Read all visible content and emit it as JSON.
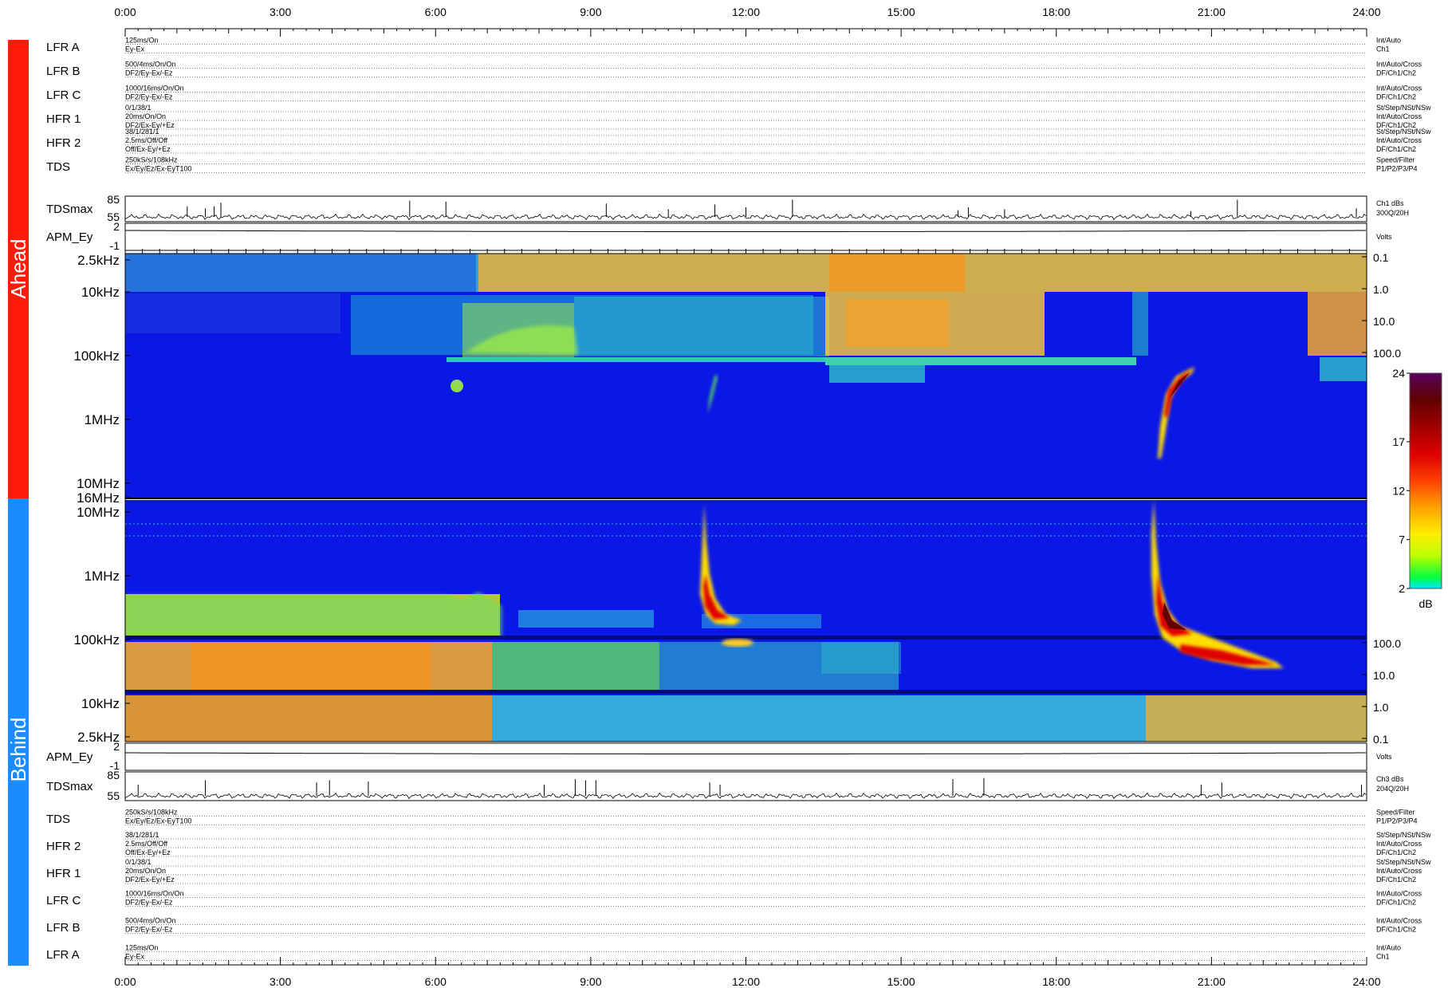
{
  "chart_data": {
    "type": "heatmap",
    "time_ticks": [
      "0:00",
      "3:00",
      "6:00",
      "9:00",
      "12:00",
      "15:00",
      "18:00",
      "21:00",
      "24:00"
    ],
    "ahead": {
      "label": "Ahead",
      "color": "#ff1a0a",
      "rows": [
        {
          "name": "LFR A",
          "left": [
            "125ms/On",
            "Ey-Ex"
          ],
          "right": [
            "Int/Auto",
            "Ch1"
          ]
        },
        {
          "name": "LFR B",
          "left": [
            "500/4ms/On/On",
            "DF2/Ey-Ex/-Ez"
          ],
          "right": [
            "Int/Auto/Cross",
            "DF/Ch1/Ch2"
          ]
        },
        {
          "name": "LFR C",
          "left": [
            "1000/16ms/On/On",
            "DF2/Ey-Ex/-Ez"
          ],
          "right": [
            "Int/Auto/Cross",
            "DF/Ch1/Ch2"
          ]
        },
        {
          "name": "HFR 1",
          "left": [
            "0/1/38/1",
            "20ms/On/On",
            "DF2/Ex-Ey/+Ez"
          ],
          "right": [
            "St/Step/NSt/NSw",
            "Int/Auto/Cross",
            "DF/Ch1/Ch2"
          ]
        },
        {
          "name": "HFR 2",
          "left": [
            "38/1/281/1",
            "2.5ms/Off/Off",
            "Off/Ex-Ey/+Ez"
          ],
          "right": [
            "St/Step/NSt/NSw",
            "Int/Auto/Cross",
            "DF/Ch1/Ch2"
          ]
        },
        {
          "name": "TDS",
          "left": [
            "250kS/s/108kHz",
            "Ex/Ey/Ez/Ex-EyT100"
          ],
          "right": [
            "Speed/Filter",
            "P1/P2/P3/P4"
          ]
        }
      ],
      "tdsmax": {
        "name": "TDSmax",
        "ticks": [
          "85",
          "55"
        ],
        "right": [
          "Ch1 dBs",
          "300Q/20H"
        ],
        "spikes": [
          [
            1.2,
            0.55
          ],
          [
            1.55,
            0.45
          ],
          [
            1.72,
            0.55
          ],
          [
            1.85,
            0.75
          ],
          [
            5.5,
            0.85
          ],
          [
            6.2,
            0.8
          ],
          [
            9.3,
            0.7
          ],
          [
            10.5,
            0.4
          ],
          [
            11.4,
            0.65
          ],
          [
            12.0,
            0.5
          ],
          [
            12.9,
            0.9
          ],
          [
            16.1,
            0.35
          ],
          [
            16.3,
            0.5
          ],
          [
            17.0,
            0.4
          ],
          [
            20.6,
            0.3
          ],
          [
            21.5,
            0.9
          ],
          [
            23.8,
            0.45
          ]
        ]
      },
      "apm": {
        "name": "APM_Ey",
        "ticks": [
          "2",
          "-1"
        ],
        "right": [
          "Volts"
        ]
      },
      "freq_labels": [
        "2.5kHz",
        "10kHz",
        "100kHz",
        "1MHz",
        "10MHz"
      ],
      "right_labels": [
        "0.1",
        "1.0",
        "10.0",
        "100.0"
      ]
    },
    "behind": {
      "label": "Behind",
      "color": "#1a8cff",
      "rows": [
        {
          "name": "TDS",
          "left": [
            "250kS/s/108kHz",
            "Ex/Ey/Ez/Ex-EyT100"
          ],
          "right": [
            "Speed/Filter",
            "P1/P2/P3/P4"
          ]
        },
        {
          "name": "HFR 2",
          "left": [
            "38/1/281/1",
            "2.5ms/Off/Off",
            "Off/Ex-Ey/+Ez"
          ],
          "right": [
            "St/Step/NSt/NSw",
            "Int/Auto/Cross",
            "DF/Ch1/Ch2"
          ]
        },
        {
          "name": "HFR 1",
          "left": [
            "0/1/38/1",
            "20ms/On/On",
            "DF2/Ex-Ey/+Ez"
          ],
          "right": [
            "St/Step/NSt/NSw",
            "Int/Auto/Cross",
            "DF/Ch1/Ch2"
          ]
        },
        {
          "name": "LFR C",
          "left": [
            "1000/16ms/On/On",
            "DF2/Ey-Ex/-Ez"
          ],
          "right": [
            "Int/Auto/Cross",
            "DF/Ch1/Ch2"
          ]
        },
        {
          "name": "LFR B",
          "left": [
            "500/4ms/On/On",
            "DF2/Ey-Ex/-Ez"
          ],
          "right": [
            "Int/Auto/Cross",
            "DF/Ch1/Ch2"
          ]
        },
        {
          "name": "LFR A",
          "left": [
            "125ms/On",
            "Ey-Ex"
          ],
          "right": [
            "Int/Auto",
            "Ch1"
          ]
        }
      ],
      "tdsmax": {
        "name": "TDSmax",
        "ticks": [
          "85",
          "55"
        ],
        "right": [
          "Ch3 dBs",
          "204Q/20H"
        ],
        "spikes": [
          [
            0.25,
            0.5
          ],
          [
            1.55,
            0.7
          ],
          [
            3.7,
            0.6
          ],
          [
            3.95,
            0.7
          ],
          [
            4.7,
            0.65
          ],
          [
            8.1,
            0.5
          ],
          [
            8.7,
            0.75
          ],
          [
            8.9,
            0.7
          ],
          [
            9.1,
            0.7
          ],
          [
            11.3,
            0.6
          ],
          [
            11.5,
            0.5
          ],
          [
            16.0,
            0.75
          ],
          [
            16.6,
            0.8
          ],
          [
            20.8,
            0.5
          ],
          [
            21.2,
            0.6
          ],
          [
            23.9,
            0.5
          ]
        ]
      },
      "apm": {
        "name": "APM_Ey",
        "ticks": [
          "2",
          "-1"
        ],
        "right": [
          "Volts"
        ]
      },
      "freq_labels": [
        "16MHz",
        "10MHz",
        "1MHz",
        "100kHz",
        "10kHz",
        "2.5kHz"
      ],
      "right_labels": [
        "100.0",
        "10.0",
        "1.0",
        "0.1"
      ]
    },
    "colorbar": {
      "min": 2,
      "max": 24,
      "ticks": [
        "24",
        "17",
        "12",
        "7",
        "2"
      ],
      "unit": "dB"
    },
    "events": [
      {
        "panel": "ahead",
        "desc": "type III burst",
        "t_start": 11.4,
        "t_end": 11.3
      },
      {
        "panel": "ahead",
        "desc": "type III burst",
        "t_start": 20.6,
        "t_end": 20.0
      },
      {
        "panel": "behind",
        "desc": "type III burst",
        "t_start": 11.15,
        "t_end": 11.8
      },
      {
        "panel": "behind",
        "desc": "type III burst",
        "t_start": 19.95,
        "t_end": 22.8
      }
    ]
  }
}
